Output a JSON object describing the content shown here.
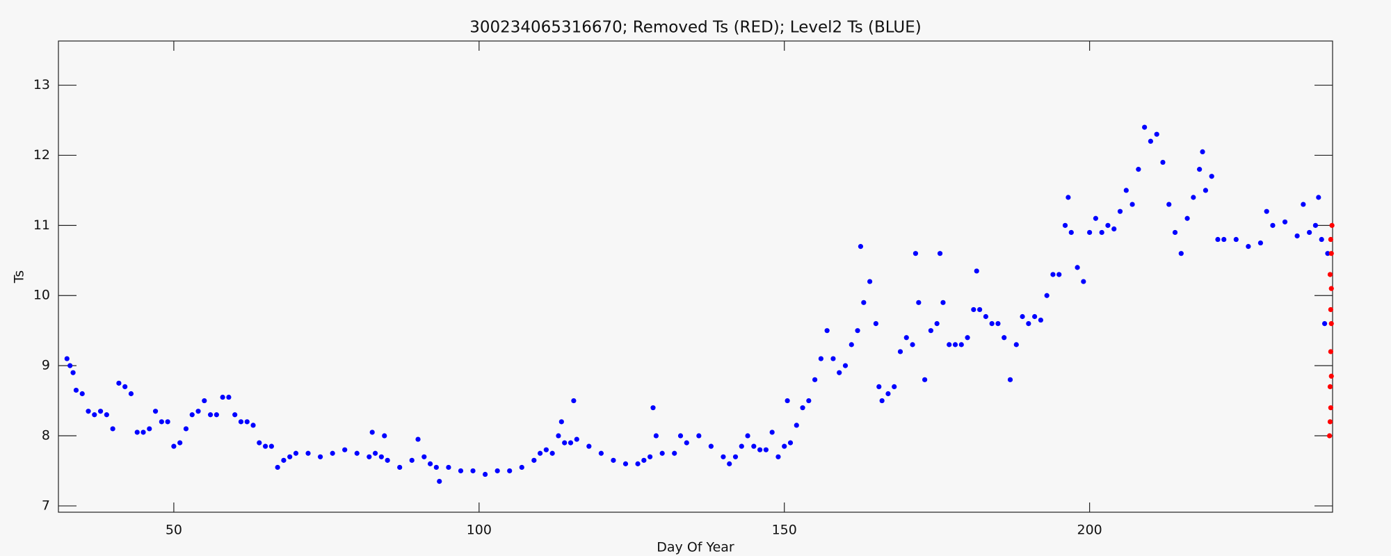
{
  "chart_data": {
    "type": "scatter",
    "title": "300234065316670; Removed Ts (RED); Level2 Ts (BLUE)",
    "x_label": "Day Of Year",
    "y_label": "Ts",
    "xlim": [
      31.1,
      239.8
    ],
    "ylim": [
      6.91,
      13.63
    ],
    "xticks": [
      50,
      100,
      150,
      200
    ],
    "yticks": [
      7,
      8,
      9,
      10,
      11,
      12,
      13
    ],
    "series": [
      {
        "color": "#0000ff",
        "x": [
          32.5,
          33,
          33.5,
          34,
          35,
          36,
          37,
          38,
          39,
          40,
          41,
          42,
          43,
          44,
          45,
          46,
          47,
          48,
          49,
          50,
          51,
          52,
          53,
          54,
          55,
          56,
          57,
          58,
          59,
          60,
          61,
          62,
          63,
          64,
          65,
          66,
          67,
          68,
          69,
          70,
          72,
          74,
          76,
          78,
          80,
          82,
          82.5,
          83,
          84,
          84.5,
          85,
          87,
          89,
          90,
          91,
          92,
          93,
          93.5,
          95,
          97,
          99,
          101,
          103,
          105,
          107,
          109,
          110,
          111,
          112,
          113,
          113.5,
          114,
          115,
          115.5,
          116,
          118,
          120,
          122,
          124,
          126,
          127,
          128,
          128.5,
          129,
          130,
          132,
          133,
          134,
          136,
          138,
          140,
          141,
          142,
          143,
          144,
          145,
          146,
          147,
          148,
          149,
          150,
          150.5,
          151,
          152,
          153,
          154,
          155,
          156,
          157,
          158,
          159,
          160,
          161,
          162,
          162.5,
          163,
          164,
          165,
          165.5,
          166,
          167,
          168,
          169,
          170,
          171,
          171.5,
          172,
          173,
          174,
          175,
          175.5,
          176,
          177,
          178,
          179,
          180,
          181,
          181.5,
          182,
          183,
          184,
          185,
          186,
          187,
          188,
          189,
          190,
          191,
          192,
          193,
          194,
          195,
          196,
          196.5,
          197,
          198,
          199,
          200,
          201,
          202,
          203,
          204,
          205,
          206,
          207,
          208,
          209,
          210,
          211,
          212,
          213,
          214,
          215,
          216,
          217,
          218,
          218.5,
          219,
          220,
          221,
          222,
          224,
          226,
          228,
          229,
          230,
          232,
          234,
          235,
          236,
          237,
          237.5,
          238,
          238.5,
          239
        ],
        "values": [
          9.1,
          9.0,
          8.9,
          8.65,
          8.6,
          8.35,
          8.3,
          8.35,
          8.3,
          8.1,
          8.75,
          8.7,
          8.6,
          8.05,
          8.05,
          8.1,
          8.35,
          8.2,
          8.2,
          7.85,
          7.9,
          8.1,
          8.3,
          8.35,
          8.5,
          8.3,
          8.3,
          8.55,
          8.55,
          8.3,
          8.2,
          8.2,
          8.15,
          7.9,
          7.85,
          7.85,
          7.55,
          7.65,
          7.7,
          7.75,
          7.75,
          7.7,
          7.75,
          7.8,
          7.75,
          7.7,
          8.05,
          7.75,
          7.7,
          8.0,
          7.65,
          7.55,
          7.65,
          7.95,
          7.7,
          7.6,
          7.55,
          7.35,
          7.55,
          7.5,
          7.5,
          7.45,
          7.5,
          7.5,
          7.55,
          7.65,
          7.75,
          7.8,
          7.75,
          8.0,
          8.2,
          7.9,
          7.9,
          8.5,
          7.95,
          7.85,
          7.75,
          7.65,
          7.6,
          7.6,
          7.65,
          7.7,
          8.4,
          8.0,
          7.75,
          7.75,
          8.0,
          7.9,
          8.0,
          7.85,
          7.7,
          7.6,
          7.7,
          7.85,
          8.0,
          7.85,
          7.8,
          7.8,
          8.05,
          7.7,
          7.85,
          8.5,
          7.9,
          8.15,
          8.4,
          8.5,
          8.8,
          9.1,
          9.5,
          9.1,
          8.9,
          9.0,
          9.3,
          9.5,
          10.7,
          9.9,
          10.2,
          9.6,
          8.7,
          8.5,
          8.6,
          8.7,
          9.2,
          9.4,
          9.3,
          10.6,
          9.9,
          8.8,
          9.5,
          9.6,
          10.6,
          9.9,
          9.3,
          9.3,
          9.3,
          9.4,
          9.8,
          10.35,
          9.8,
          9.7,
          9.6,
          9.6,
          9.4,
          8.8,
          9.3,
          9.7,
          9.6,
          9.7,
          9.65,
          10.0,
          10.3,
          10.3,
          11.0,
          11.4,
          10.9,
          10.4,
          10.2,
          10.9,
          11.1,
          10.9,
          11.0,
          10.95,
          11.2,
          11.5,
          11.3,
          11.8,
          12.4,
          12.2,
          12.3,
          11.9,
          11.3,
          10.9,
          10.6,
          11.1,
          11.4,
          11.8,
          12.05,
          11.5,
          11.7,
          10.8,
          10.8,
          10.8,
          10.7,
          10.75,
          11.2,
          11.0,
          11.05,
          10.85,
          11.3,
          10.9,
          11.0,
          11.4,
          10.8,
          9.6,
          10.6
        ]
      },
      {
        "color": "#ff0000",
        "x": [
          239.3,
          239.4,
          239.5,
          239.4,
          239.6,
          239.5,
          239.6,
          239.5,
          239.6,
          239.4,
          239.6,
          239.5,
          239.7
        ],
        "values": [
          8.0,
          8.2,
          8.4,
          8.7,
          8.85,
          9.2,
          9.6,
          9.8,
          10.1,
          10.3,
          10.6,
          10.8,
          11.0
        ]
      }
    ]
  }
}
